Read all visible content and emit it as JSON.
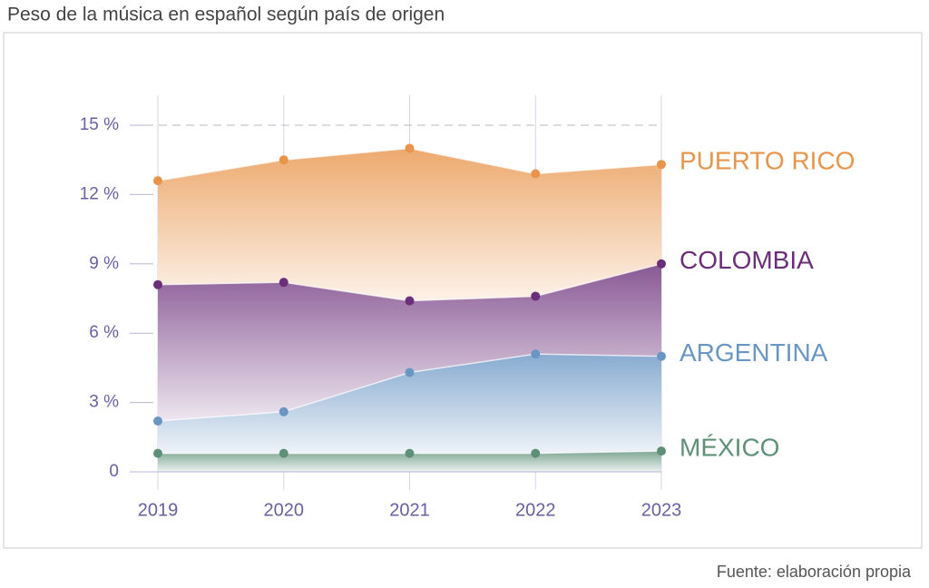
{
  "chart_data": {
    "type": "area",
    "title": "Peso de la música en español según país de origen",
    "source": "Fuente: elaboración propia",
    "categories": [
      "2019",
      "2020",
      "2021",
      "2022",
      "2023"
    ],
    "series": [
      {
        "name": "PUERTO RICO",
        "color": "#e8944a",
        "values": [
          12.6,
          13.5,
          14.0,
          12.9,
          13.3
        ]
      },
      {
        "name": "COLOMBIA",
        "color": "#6b2f7a",
        "values": [
          8.1,
          8.2,
          7.4,
          7.6,
          9.0
        ]
      },
      {
        "name": "ARGENTINA",
        "color": "#6a96c4",
        "values": [
          2.2,
          2.6,
          4.3,
          5.1,
          5.0
        ]
      },
      {
        "name": "MÉXICO",
        "color": "#5e9078",
        "values": [
          0.8,
          0.8,
          0.8,
          0.8,
          0.9
        ]
      }
    ],
    "ylim": [
      0,
      15
    ],
    "yticks": [
      0,
      {
        "value": 3,
        "label": "3 %"
      },
      {
        "value": 6,
        "label": "6 %"
      },
      {
        "value": 9,
        "label": "9 %"
      },
      {
        "value": 12,
        "label": "12 %"
      },
      {
        "value": 15,
        "label": "15 %"
      }
    ],
    "grid": true
  }
}
